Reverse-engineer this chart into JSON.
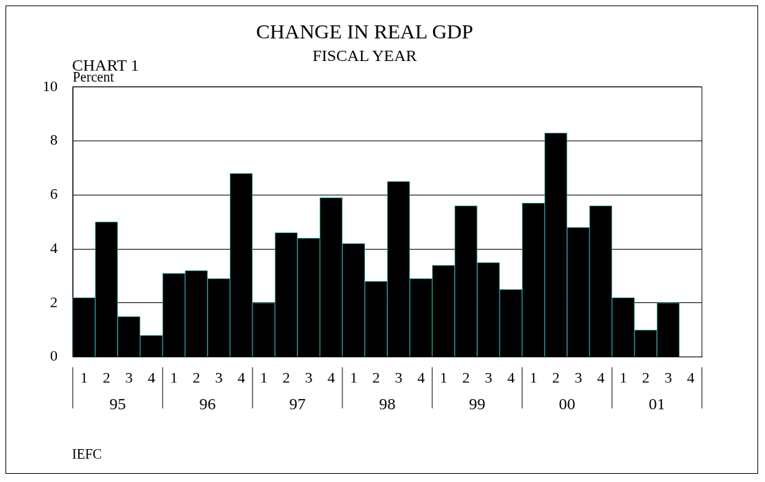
{
  "chart_data": {
    "type": "bar",
    "title": "CHANGE IN REAL GDP",
    "subtitle": "FISCAL YEAR",
    "ylabel": "Percent",
    "categories": [
      "1",
      "2",
      "3",
      "4",
      "1",
      "2",
      "3",
      "4",
      "1",
      "2",
      "3",
      "4",
      "1",
      "2",
      "3",
      "4",
      "1",
      "2",
      "3",
      "4",
      "1",
      "2",
      "3",
      "4",
      "1",
      "2",
      "3",
      "4"
    ],
    "values": [
      2.2,
      5.0,
      1.5,
      0.8,
      3.1,
      3.2,
      2.9,
      6.8,
      2.0,
      4.6,
      4.4,
      5.9,
      4.2,
      2.8,
      6.5,
      2.9,
      3.4,
      5.6,
      3.5,
      2.5,
      5.7,
      8.3,
      4.8,
      5.6,
      2.2,
      1.0,
      2.0,
      null
    ],
    "color": "#000000",
    "ylim": [
      0,
      10
    ],
    "yticks": [
      0,
      2,
      4,
      6,
      8,
      10
    ],
    "grid": "y",
    "legend": false,
    "annotations": [
      "CHART 1",
      "95",
      "96",
      "97",
      "98",
      "99",
      "00",
      "01",
      "IEFC"
    ]
  }
}
